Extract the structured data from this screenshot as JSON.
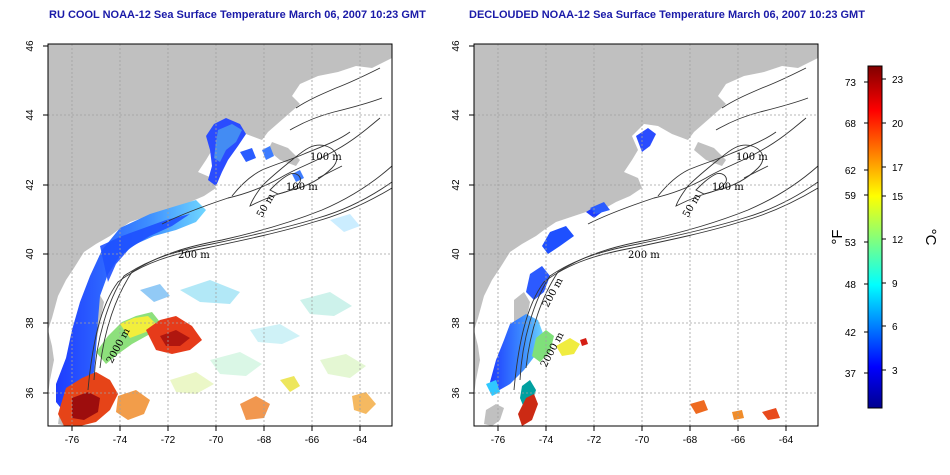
{
  "panels": {
    "left": {
      "title": "RU COOL NOAA-12 Sea Surface Temperature March 06, 2007 10:23 GMT"
    },
    "right": {
      "title": "DECLOUDED NOAA-12 Sea Surface Temperature March 06, 2007 10:23 GMT"
    }
  },
  "axes": {
    "x_ticks": [
      "-76",
      "-74",
      "-72",
      "-70",
      "-68",
      "-66",
      "-64"
    ],
    "y_ticks": [
      "46",
      "44",
      "42",
      "40",
      "38",
      "36"
    ]
  },
  "contours": {
    "labels": [
      "100 m",
      "100 m",
      "50 m",
      "200 m",
      "2000 m"
    ],
    "labels_right": [
      "100 m",
      "100 m",
      "50 m",
      "200 m",
      "200 m",
      "2000 m"
    ]
  },
  "colorbar": {
    "f_ticks": [
      "73",
      "68",
      "62",
      "59",
      "53",
      "48",
      "42",
      "37"
    ],
    "c_ticks": [
      "23",
      "20",
      "17",
      "15",
      "12",
      "9",
      "6",
      "3"
    ],
    "f_unit": "°F",
    "c_unit": "°C"
  },
  "colors": {
    "land": "#c0c0c0",
    "ocean": "#ffffff",
    "grid": "#a0a0a0",
    "title": "#1a1aa8"
  }
}
